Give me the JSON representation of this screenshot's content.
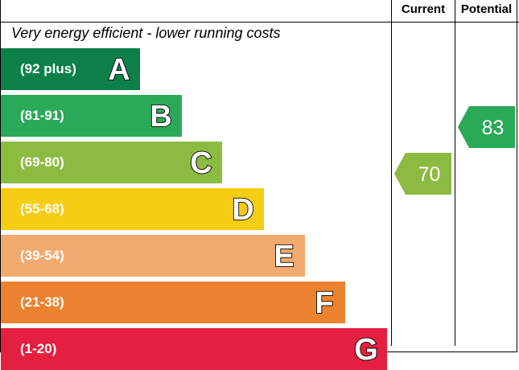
{
  "header": {
    "current": "Current",
    "potential": "Potential"
  },
  "top_caption": "Very energy efficient - lower running costs",
  "chart_data": {
    "type": "bar",
    "categories": [
      "A",
      "B",
      "C",
      "D",
      "E",
      "F",
      "G"
    ],
    "ranges": [
      "(92 plus)",
      "(81-91)",
      "(69-80)",
      "(55-68)",
      "(39-54)",
      "(21-38)",
      "(1-20)"
    ],
    "colors": [
      "#0c8048",
      "#2aa958",
      "#8cbb41",
      "#f6cc15",
      "#f2aa6e",
      "#ec8230",
      "#e41f3f"
    ],
    "current": {
      "value": "70",
      "band": "C",
      "color": "#8cbb41"
    },
    "potential": {
      "value": "83",
      "band": "B",
      "color": "#2aa958"
    }
  }
}
